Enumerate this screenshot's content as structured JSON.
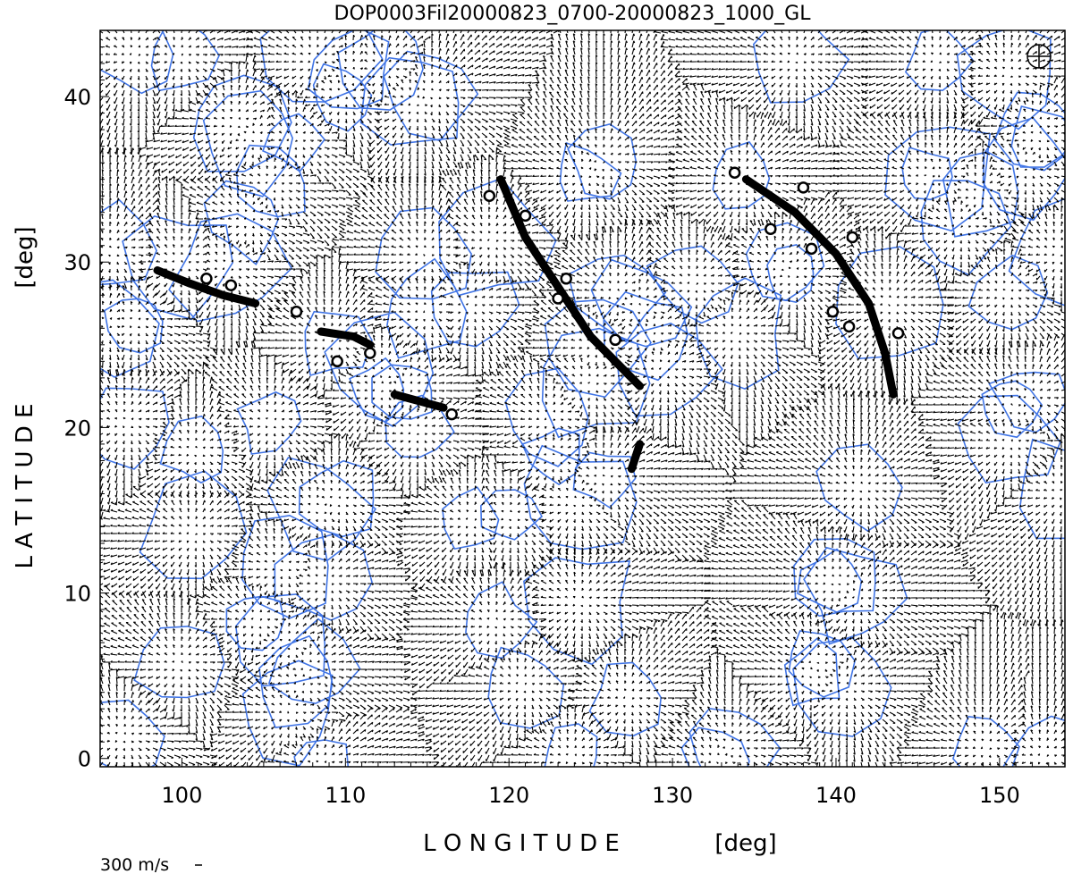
{
  "chart_data": {
    "type": "scatter",
    "title": "DOP0003Fil20000823_0700-20000823_1000_GL",
    "xlabel": "L O N G I T U D E",
    "xunit": "[deg]",
    "ylabel": "L A T I T U D E",
    "yunit": "[deg]",
    "xlim": [
      95,
      154
    ],
    "ylim": [
      -0.5,
      44
    ],
    "x_ticks": [
      100,
      110,
      120,
      130,
      140,
      150
    ],
    "y_ticks": [
      0,
      10,
      20,
      30,
      40
    ],
    "grid": false,
    "scale_label": "300 m/s",
    "colors": {
      "vectors": "#000000",
      "network": "#1f5ce0",
      "filaments": "#000000"
    },
    "filaments": [
      {
        "points": [
          [
            98.5,
            29.5
          ],
          [
            100.5,
            28.7
          ],
          [
            102.5,
            28.0
          ],
          [
            104.5,
            27.5
          ]
        ]
      },
      {
        "points": [
          [
            108.5,
            25.8
          ],
          [
            110.5,
            25.5
          ],
          [
            111.5,
            25.0
          ]
        ]
      },
      {
        "points": [
          [
            113.0,
            22.0
          ],
          [
            114.5,
            21.6
          ],
          [
            116.0,
            21.2
          ]
        ]
      },
      {
        "points": [
          [
            119.5,
            35.0
          ],
          [
            121.0,
            31.5
          ],
          [
            123.0,
            28.5
          ],
          [
            125.0,
            25.5
          ],
          [
            127.0,
            23.5
          ],
          [
            128.0,
            22.5
          ]
        ]
      },
      {
        "points": [
          [
            134.5,
            35.0
          ],
          [
            137.5,
            33.0
          ],
          [
            140.0,
            30.5
          ],
          [
            142.0,
            27.5
          ],
          [
            143.0,
            24.5
          ],
          [
            143.5,
            22.0
          ]
        ]
      },
      {
        "points": [
          [
            128.0,
            19.0
          ],
          [
            127.5,
            17.5
          ]
        ]
      }
    ],
    "footpoints": [
      [
        101.5,
        29.0
      ],
      [
        103.0,
        28.6
      ],
      [
        107.0,
        27.0
      ],
      [
        109.5,
        24.0
      ],
      [
        111.5,
        24.5
      ],
      [
        116.5,
        20.8
      ],
      [
        118.8,
        34.0
      ],
      [
        121.0,
        32.8
      ],
      [
        123.5,
        29.0
      ],
      [
        123.0,
        27.8
      ],
      [
        126.5,
        25.3
      ],
      [
        133.8,
        35.4
      ],
      [
        138.0,
        34.5
      ],
      [
        136.0,
        32.0
      ],
      [
        138.5,
        30.8
      ],
      [
        141.0,
        31.5
      ],
      [
        139.8,
        27.0
      ],
      [
        140.8,
        26.1
      ],
      [
        143.8,
        25.7
      ]
    ]
  }
}
